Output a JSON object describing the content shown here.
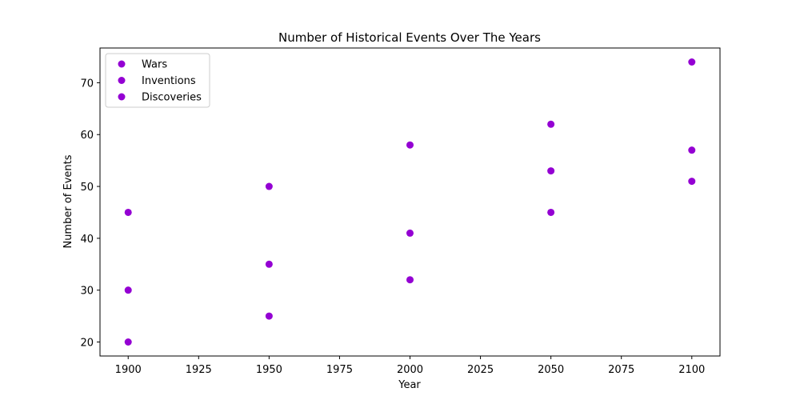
{
  "chart_data": {
    "type": "scatter",
    "title": "Number of Historical Events Over The Years",
    "xlabel": "Year",
    "ylabel": "Number of Events",
    "xlim": [
      1890,
      2110
    ],
    "ylim": [
      17.3,
      76.7
    ],
    "xticks": [
      1900,
      1925,
      1950,
      1975,
      2000,
      2025,
      2050,
      2075,
      2100
    ],
    "yticks": [
      20,
      30,
      40,
      50,
      60,
      70
    ],
    "grid": false,
    "legend_position": "top-left",
    "marker_color": "#9400d3",
    "x": [
      1900,
      1950,
      2000,
      2050,
      2100
    ],
    "series": [
      {
        "name": "Wars",
        "values": [
          20,
          25,
          32,
          45,
          51
        ]
      },
      {
        "name": "Inventions",
        "values": [
          30,
          35,
          41,
          53,
          57
        ]
      },
      {
        "name": "Discoveries",
        "values": [
          45,
          50,
          58,
          62,
          74
        ]
      }
    ]
  }
}
